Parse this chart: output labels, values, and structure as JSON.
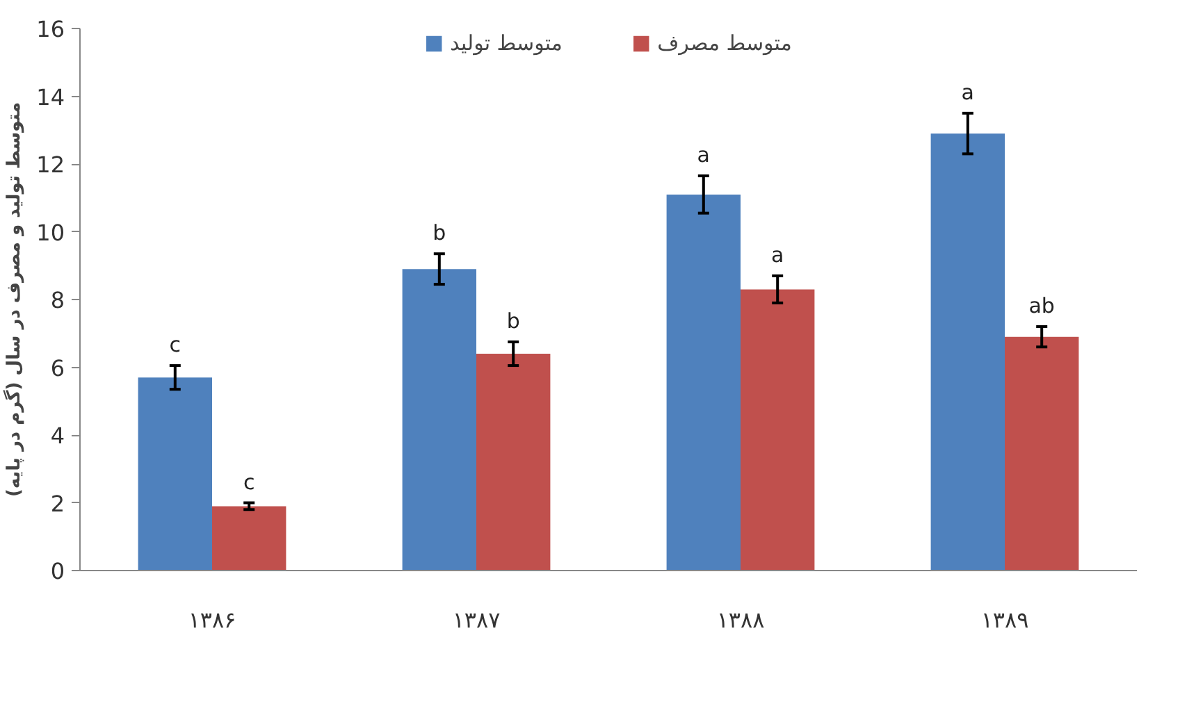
{
  "chart_data": {
    "type": "bar",
    "ylabel": "متوسط تولید و مصرف در سال (گرم در پایه)",
    "categories": [
      "۱۳۸۶",
      "۱۳۸۷",
      "۱۳۸۸",
      "۱۳۸۹"
    ],
    "series": [
      {
        "name": "متوسط تولید",
        "color": "#4f81bd",
        "values": [
          5.7,
          8.9,
          11.1,
          12.9
        ],
        "errors": [
          0.35,
          0.45,
          0.55,
          0.6
        ]
      },
      {
        "name": "متوسط مصرف",
        "color": "#c0504d",
        "values": [
          1.9,
          6.4,
          8.3,
          6.9
        ],
        "errors": [
          0.1,
          0.35,
          0.4,
          0.3
        ]
      }
    ],
    "annotations": [
      {
        "text": "c",
        "x": "۱۳۸۶",
        "y": 5.7
      },
      {
        "text": "c",
        "x": "۱۳۸۶",
        "y": 1.9
      },
      {
        "text": "b",
        "x": "۱۳۸۷",
        "y": 8.9
      },
      {
        "text": "b",
        "x": "۱۳۸۷",
        "y": 6.4
      },
      {
        "text": "a",
        "x": "۱۳۸۸",
        "y": 11.1
      },
      {
        "text": "a",
        "x": "۱۳۸۸",
        "y": 8.3
      },
      {
        "text": "a",
        "x": "۱۳۸۹",
        "y": 12.9
      },
      {
        "text": "ab",
        "x": "۱۳۸۹",
        "y": 6.9
      }
    ],
    "ylim": [
      0,
      16
    ],
    "yticks": [
      0,
      2,
      4,
      6,
      8,
      10,
      12,
      14,
      16
    ],
    "grid": false,
    "legend": "top"
  }
}
